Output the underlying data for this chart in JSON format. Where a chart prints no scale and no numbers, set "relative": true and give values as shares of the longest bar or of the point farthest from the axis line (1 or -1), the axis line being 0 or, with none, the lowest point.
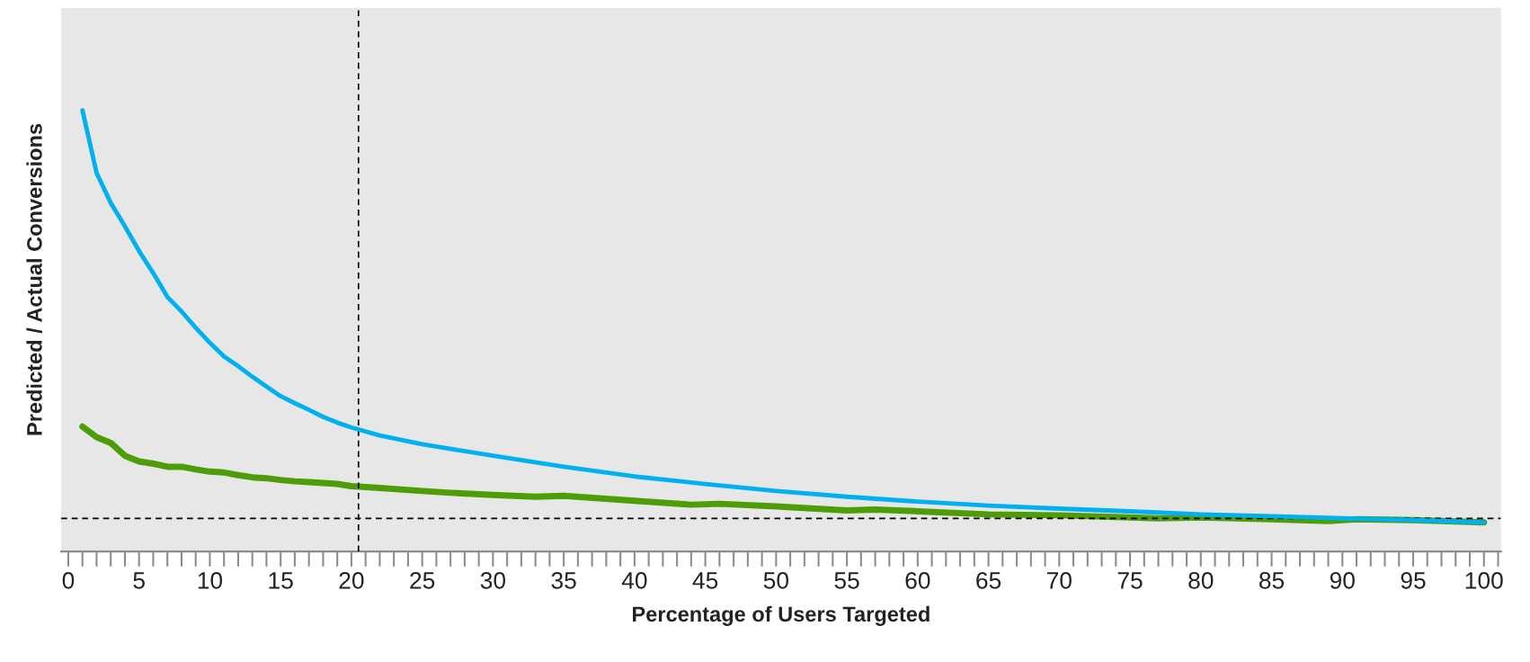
{
  "chart_data": {
    "type": "line",
    "relative": true,
    "xlabel": "Percentage of Users Targeted",
    "ylabel": "Predicted / Actual Conversions",
    "xlim": [
      -0.5,
      101.2
    ],
    "xticks": [
      0,
      5,
      10,
      15,
      20,
      25,
      30,
      35,
      40,
      45,
      50,
      55,
      60,
      65,
      70,
      75,
      80,
      85,
      90,
      95,
      100
    ],
    "grid": false,
    "legend": false,
    "marker": "none",
    "line_style": "solid",
    "series": [
      {
        "color": "#00b0f0",
        "x": [
          1,
          2,
          3,
          4,
          5,
          6,
          7,
          8,
          9,
          10,
          11,
          12,
          13,
          14,
          15,
          16,
          17,
          18,
          19,
          20,
          22,
          25,
          30,
          35,
          40,
          45,
          50,
          55,
          60,
          65,
          70,
          75,
          80,
          85,
          90,
          95,
          100
        ],
        "values": [
          1.0,
          0.858,
          0.79,
          0.737,
          0.681,
          0.631,
          0.577,
          0.544,
          0.507,
          0.473,
          0.442,
          0.42,
          0.396,
          0.374,
          0.352,
          0.336,
          0.321,
          0.305,
          0.292,
          0.281,
          0.263,
          0.243,
          0.217,
          0.192,
          0.17,
          0.153,
          0.137,
          0.124,
          0.113,
          0.104,
          0.097,
          0.091,
          0.084,
          0.08,
          0.075,
          0.071,
          0.066
        ]
      },
      {
        "color": "#4f9c09",
        "x": [
          1,
          2,
          3,
          4,
          5,
          6,
          7,
          8,
          9,
          10,
          11,
          12,
          13,
          14,
          15,
          16,
          17,
          18,
          19,
          20,
          22,
          25,
          27,
          30,
          33,
          35,
          40,
          44,
          46,
          50,
          55,
          57,
          60,
          65,
          70,
          77,
          80,
          85,
          89,
          91,
          95,
          100
        ],
        "values": [
          0.283,
          0.259,
          0.246,
          0.217,
          0.204,
          0.199,
          0.192,
          0.192,
          0.186,
          0.181,
          0.179,
          0.173,
          0.168,
          0.166,
          0.162,
          0.159,
          0.157,
          0.155,
          0.153,
          0.148,
          0.144,
          0.137,
          0.133,
          0.128,
          0.124,
          0.126,
          0.115,
          0.106,
          0.108,
          0.102,
          0.093,
          0.095,
          0.091,
          0.084,
          0.082,
          0.075,
          0.077,
          0.073,
          0.069,
          0.073,
          0.071,
          0.066
        ]
      }
    ],
    "ref_lines": [
      {
        "axis": "x",
        "value": 20.5,
        "color": "#000000",
        "line_style": "dashed"
      },
      {
        "axis": "y",
        "value": 0.075,
        "color": "#000000",
        "line_style": "dashed"
      }
    ]
  }
}
